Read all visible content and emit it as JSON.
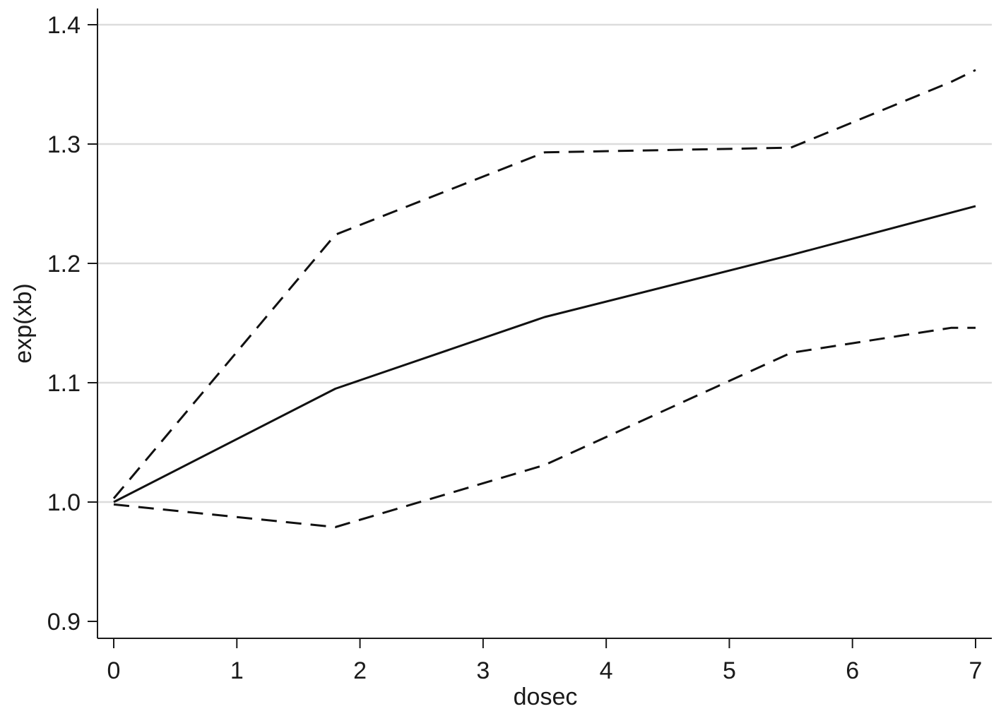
{
  "chart_data": {
    "type": "line",
    "xlabel": "dosec",
    "ylabel": "exp(xb)",
    "xlim": [
      0,
      7
    ],
    "ylim": [
      0.9,
      1.4
    ],
    "x_ticks": [
      "0",
      "1",
      "2",
      "3",
      "4",
      "5",
      "6",
      "7"
    ],
    "y_ticks": [
      "0.9",
      "1.0",
      "1.1",
      "1.2",
      "1.3",
      "1.4"
    ],
    "grid": true,
    "legend": "none",
    "series": [
      {
        "style": "solid",
        "x": [
          0,
          1.8,
          3.5,
          5.5,
          7
        ],
        "y": [
          1.0,
          1.095,
          1.155,
          1.207,
          1.248
        ]
      },
      {
        "style": "dashed",
        "x": [
          0,
          1.8,
          3.5,
          5.5,
          6.8,
          7
        ],
        "y": [
          1.003,
          1.224,
          1.293,
          1.297,
          1.352,
          1.362
        ]
      },
      {
        "style": "dashed",
        "x": [
          0,
          1.8,
          3.5,
          5.5,
          6.8,
          7
        ],
        "y": [
          0.998,
          0.979,
          1.031,
          1.125,
          1.146,
          1.146
        ]
      }
    ]
  }
}
